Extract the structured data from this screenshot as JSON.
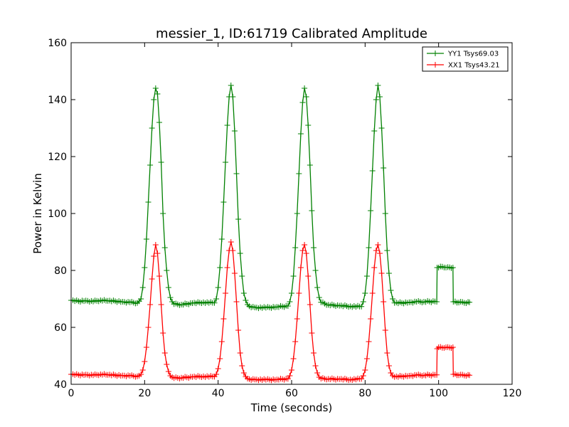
{
  "chart_data": {
    "type": "line",
    "title": "messier_1, ID:61719 Calibrated Amplitude",
    "xlabel": "Time (seconds)",
    "ylabel": "Power in Kelvin",
    "xlim": [
      0,
      120
    ],
    "ylim": [
      40,
      160
    ],
    "xticks": [
      0,
      20,
      40,
      60,
      80,
      100,
      120
    ],
    "yticks": [
      40,
      60,
      80,
      100,
      120,
      140,
      160
    ],
    "grid": false,
    "legend_position": "top-right",
    "sample_interval": 0.5,
    "series": [
      {
        "name": "YY1 Tsys69.03",
        "color": "#008000",
        "marker": "+",
        "points": [
          [
            0,
            69.5
          ],
          [
            2,
            69.2
          ],
          [
            4,
            69.4
          ],
          [
            6,
            69.1
          ],
          [
            8,
            69.5
          ],
          [
            10,
            69.3
          ],
          [
            12,
            69.2
          ],
          [
            14,
            69.0
          ],
          [
            16,
            68.8
          ],
          [
            18,
            68.6
          ],
          [
            19,
            70
          ],
          [
            19.5,
            74
          ],
          [
            20,
            81
          ],
          [
            20.5,
            91
          ],
          [
            21,
            104
          ],
          [
            21.5,
            117
          ],
          [
            22,
            130
          ],
          [
            22.5,
            140
          ],
          [
            23,
            144
          ],
          [
            23.5,
            142
          ],
          [
            24,
            132
          ],
          [
            24.5,
            118
          ],
          [
            25,
            100
          ],
          [
            25.5,
            88
          ],
          [
            26,
            80
          ],
          [
            26.5,
            74
          ],
          [
            27,
            70.5
          ],
          [
            27.5,
            69
          ],
          [
            28,
            68.2
          ],
          [
            30,
            68
          ],
          [
            33,
            68.5
          ],
          [
            36,
            68.8
          ],
          [
            39,
            68.6
          ],
          [
            39.5,
            70
          ],
          [
            40,
            74
          ],
          [
            40.5,
            81
          ],
          [
            41,
            91
          ],
          [
            41.5,
            104
          ],
          [
            42,
            118
          ],
          [
            42.5,
            131
          ],
          [
            43,
            141
          ],
          [
            43.5,
            145
          ],
          [
            44,
            141
          ],
          [
            44.5,
            129
          ],
          [
            45,
            114
          ],
          [
            45.5,
            98
          ],
          [
            46,
            86
          ],
          [
            46.5,
            78
          ],
          [
            47,
            72
          ],
          [
            47.5,
            69.5
          ],
          [
            48,
            68
          ],
          [
            48.5,
            67.4
          ],
          [
            50,
            67
          ],
          [
            53,
            66.9
          ],
          [
            56,
            67.2
          ],
          [
            59,
            67.5
          ],
          [
            59.5,
            69
          ],
          [
            60,
            72
          ],
          [
            60.5,
            78
          ],
          [
            61,
            88
          ],
          [
            61.5,
            100
          ],
          [
            62,
            114
          ],
          [
            62.5,
            128
          ],
          [
            63,
            139
          ],
          [
            63.5,
            144
          ],
          [
            64,
            141
          ],
          [
            64.5,
            131
          ],
          [
            65,
            117
          ],
          [
            65.5,
            101
          ],
          [
            66,
            88
          ],
          [
            66.5,
            80
          ],
          [
            67,
            74
          ],
          [
            67.5,
            70.5
          ],
          [
            68,
            68.8
          ],
          [
            70,
            67.9
          ],
          [
            73,
            67.6
          ],
          [
            76,
            67.4
          ],
          [
            79,
            67.3
          ],
          [
            79.5,
            69
          ],
          [
            80,
            72
          ],
          [
            80.5,
            78
          ],
          [
            81,
            88
          ],
          [
            81.5,
            101
          ],
          [
            82,
            115
          ],
          [
            82.5,
            129
          ],
          [
            83,
            140
          ],
          [
            83.5,
            145
          ],
          [
            84,
            141
          ],
          [
            84.5,
            130
          ],
          [
            85,
            116
          ],
          [
            85.5,
            100
          ],
          [
            86,
            87
          ],
          [
            86.5,
            79
          ],
          [
            87,
            73
          ],
          [
            87.5,
            70
          ],
          [
            88,
            68.6
          ],
          [
            90,
            68.6
          ],
          [
            92,
            68.8
          ],
          [
            94,
            69
          ],
          [
            96,
            69
          ],
          [
            99,
            69.1
          ],
          [
            99.5,
            69
          ],
          [
            99.6,
            81
          ],
          [
            100,
            81
          ],
          [
            101,
            81.3
          ],
          [
            102,
            81
          ],
          [
            103,
            81.1
          ],
          [
            103.9,
            81
          ],
          [
            104,
            69
          ],
          [
            105,
            68.7
          ],
          [
            106,
            69
          ],
          [
            107,
            68.6
          ],
          [
            108,
            68.9
          ],
          [
            108.4,
            68.8
          ]
        ]
      },
      {
        "name": "XX1 Tsys43.21",
        "color": "#ff0000",
        "marker": "+",
        "points": [
          [
            0,
            43.5
          ],
          [
            2,
            43.3
          ],
          [
            4,
            43.4
          ],
          [
            6,
            43.2
          ],
          [
            8,
            43.5
          ],
          [
            10,
            43.3
          ],
          [
            12,
            43.2
          ],
          [
            14,
            43.1
          ],
          [
            16,
            43.0
          ],
          [
            18,
            42.8
          ],
          [
            19,
            43.5
          ],
          [
            19.5,
            45
          ],
          [
            20,
            48
          ],
          [
            20.5,
            53
          ],
          [
            21,
            60
          ],
          [
            21.5,
            68
          ],
          [
            22,
            77
          ],
          [
            22.5,
            85
          ],
          [
            23,
            89
          ],
          [
            23.5,
            86
          ],
          [
            24,
            78
          ],
          [
            24.5,
            68
          ],
          [
            25,
            58
          ],
          [
            25.5,
            51
          ],
          [
            26,
            47
          ],
          [
            26.5,
            44.5
          ],
          [
            27,
            43
          ],
          [
            27.5,
            42.5
          ],
          [
            28,
            42.2
          ],
          [
            30,
            42.3
          ],
          [
            33,
            42.6
          ],
          [
            36,
            42.8
          ],
          [
            39,
            42.7
          ],
          [
            39.5,
            43.5
          ],
          [
            40,
            45.5
          ],
          [
            40.5,
            49
          ],
          [
            41,
            55
          ],
          [
            41.5,
            63
          ],
          [
            42,
            72
          ],
          [
            42.5,
            81
          ],
          [
            43,
            87
          ],
          [
            43.5,
            90
          ],
          [
            44,
            87
          ],
          [
            44.5,
            79
          ],
          [
            45,
            69
          ],
          [
            45.5,
            59
          ],
          [
            46,
            51
          ],
          [
            46.5,
            46.5
          ],
          [
            47,
            44
          ],
          [
            47.5,
            42.7
          ],
          [
            48,
            42
          ],
          [
            48.5,
            41.8
          ],
          [
            50,
            41.7
          ],
          [
            53,
            41.6
          ],
          [
            56,
            41.7
          ],
          [
            59,
            41.9
          ],
          [
            59.5,
            43
          ],
          [
            60,
            45
          ],
          [
            60.5,
            49
          ],
          [
            61,
            55
          ],
          [
            61.5,
            63
          ],
          [
            62,
            72
          ],
          [
            62.5,
            81
          ],
          [
            63,
            87
          ],
          [
            63.5,
            89
          ],
          [
            64,
            86
          ],
          [
            64.5,
            78
          ],
          [
            65,
            68
          ],
          [
            65.5,
            58
          ],
          [
            66,
            51
          ],
          [
            66.5,
            46.5
          ],
          [
            67,
            44
          ],
          [
            67.5,
            42.5
          ],
          [
            68,
            42
          ],
          [
            70,
            41.9
          ],
          [
            73,
            41.8
          ],
          [
            76,
            41.7
          ],
          [
            79,
            41.9
          ],
          [
            79.5,
            43
          ],
          [
            80,
            45
          ],
          [
            80.5,
            49
          ],
          [
            81,
            55
          ],
          [
            81.5,
            63
          ],
          [
            82,
            72
          ],
          [
            82.5,
            81
          ],
          [
            83,
            87
          ],
          [
            83.5,
            89
          ],
          [
            84,
            86
          ],
          [
            84.5,
            79
          ],
          [
            85,
            69
          ],
          [
            85.5,
            59
          ],
          [
            86,
            51
          ],
          [
            86.5,
            46.5
          ],
          [
            87,
            44
          ],
          [
            87.5,
            43
          ],
          [
            88,
            42.6
          ],
          [
            90,
            42.8
          ],
          [
            92,
            43
          ],
          [
            94,
            43.2
          ],
          [
            96,
            43.2
          ],
          [
            99,
            43.3
          ],
          [
            99.5,
            43.3
          ],
          [
            99.6,
            52.5
          ],
          [
            100,
            53
          ],
          [
            101,
            52.8
          ],
          [
            102,
            53
          ],
          [
            103,
            52.9
          ],
          [
            103.9,
            53
          ],
          [
            104,
            43.5
          ],
          [
            105,
            43.2
          ],
          [
            106,
            43.4
          ],
          [
            107,
            43.1
          ],
          [
            108,
            43.3
          ],
          [
            108.4,
            43.2
          ]
        ]
      }
    ]
  }
}
